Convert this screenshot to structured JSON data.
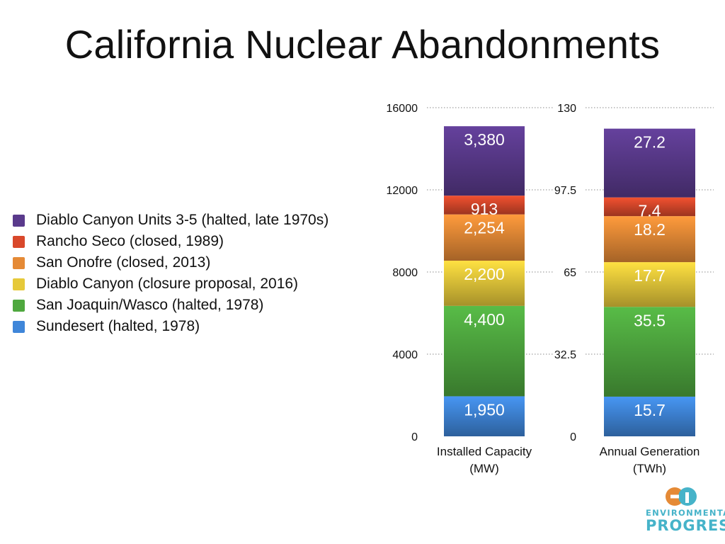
{
  "title": "California Nuclear Abandonments",
  "legend": [
    {
      "label": "Diablo Canyon Units 3-5 (halted, late 1970s)",
      "color": "#5a3a8c"
    },
    {
      "label": "Rancho Seco (closed, 1989)",
      "color": "#d9482b"
    },
    {
      "label": "San Onofre (closed, 2013)",
      "color": "#e58a36"
    },
    {
      "label": "Diablo Canyon (closure proposal, 2016)",
      "color": "#e6c93a"
    },
    {
      "label": "San Joaquin/Wasco (halted, 1978)",
      "color": "#4fa83f"
    },
    {
      "label": "Sundesert (halted, 1978)",
      "color": "#3f86d9"
    }
  ],
  "chart_data": [
    {
      "type": "bar",
      "stacked": true,
      "categories": [
        "Installed Capacity (MW)"
      ],
      "xlabel": [
        "Installed Capacity",
        "(MW)"
      ],
      "ylim": [
        0,
        16000
      ],
      "yticks": [
        "0",
        "4000",
        "8000",
        "12000",
        "16000"
      ],
      "grid": true,
      "series": [
        {
          "name": "Sundesert (halted, 1978)",
          "values": [
            1950
          ],
          "label": "1,950",
          "color": "#3f86d9"
        },
        {
          "name": "San Joaquin/Wasco (halted, 1978)",
          "values": [
            4400
          ],
          "label": "4,400",
          "color": "#4fa83f"
        },
        {
          "name": "Diablo Canyon (closure proposal, 2016)",
          "values": [
            2200
          ],
          "label": "2,200",
          "color": "#e6c93a"
        },
        {
          "name": "San Onofre (closed, 2013)",
          "values": [
            2254
          ],
          "label": "2,254",
          "color": "#e58a36"
        },
        {
          "name": "Rancho Seco (closed, 1989)",
          "values": [
            913
          ],
          "label": "913",
          "color": "#d9482b"
        },
        {
          "name": "Diablo Canyon Units 3-5 (halted, late 1970s)",
          "values": [
            3380
          ],
          "label": "3,380",
          "color": "#5a3a8c"
        }
      ]
    },
    {
      "type": "bar",
      "stacked": true,
      "categories": [
        "Annual Generation (TWh)"
      ],
      "xlabel": [
        "Annual Generation",
        "(TWh)"
      ],
      "ylim": [
        0,
        130
      ],
      "yticks": [
        "0",
        "32.5",
        "65",
        "97.5",
        "130"
      ],
      "grid": true,
      "series": [
        {
          "name": "Sundesert (halted, 1978)",
          "values": [
            15.7
          ],
          "label": "15.7",
          "color": "#3f86d9"
        },
        {
          "name": "San Joaquin/Wasco (halted, 1978)",
          "values": [
            35.5
          ],
          "label": "35.5",
          "color": "#4fa83f"
        },
        {
          "name": "Diablo Canyon (closure proposal, 2016)",
          "values": [
            17.7
          ],
          "label": "17.7",
          "color": "#e6c93a"
        },
        {
          "name": "San Onofre (closed, 2013)",
          "values": [
            18.2
          ],
          "label": "18.2",
          "color": "#e58a36"
        },
        {
          "name": "Rancho Seco (closed, 1989)",
          "values": [
            7.4
          ],
          "label": "7.4",
          "color": "#d9482b"
        },
        {
          "name": "Diablo Canyon Units 3-5 (halted, late 1970s)",
          "values": [
            27.2
          ],
          "label": "27.2",
          "color": "#5a3a8c"
        }
      ]
    }
  ],
  "logo": {
    "line1": "ENVIRONMENTAL",
    "line2": "PROGRESS",
    "color": "#46b3c9",
    "mark_text": "EP"
  }
}
